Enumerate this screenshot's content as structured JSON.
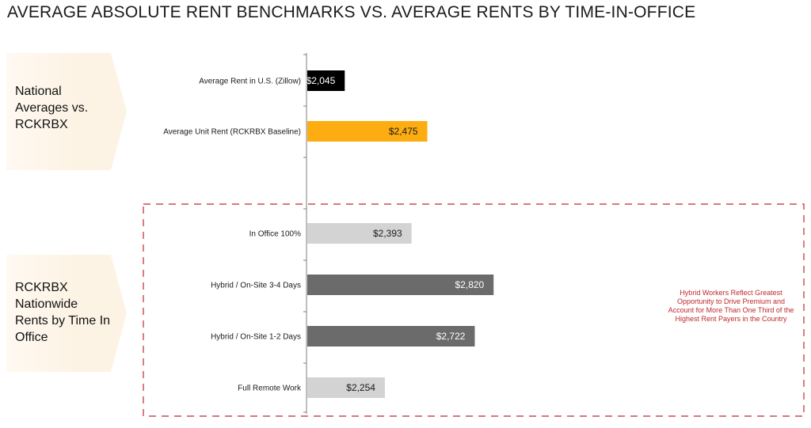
{
  "title": "AVERAGE ABSOLUTE RENT BENCHMARKS VS. AVERAGE RENTS BY TIME-IN-OFFICE",
  "panels": {
    "top": "National Averages vs. RCKRBX",
    "bottom": "RCKRBX Nationwide Rents by Time In Office"
  },
  "annotation": "Hybrid Workers Reflect Greatest Opportunity to Drive Premium and Account for More Than One Third of the Highest Rent Payers in the Country",
  "colors": {
    "black": "#000000",
    "orange": "#fdac12",
    "light_gray": "#d3d3d3",
    "dark_gray": "#6b6b6b",
    "dashed_box": "#c0282d",
    "panel_fill": "#fdf3e4"
  },
  "chart_data": {
    "type": "bar",
    "orientation": "horizontal",
    "categories": [
      "Average Rent in U.S. (Zillow)",
      "Average Unit Rent (RCKRBX Baseline)",
      "In Office 100%",
      "Hybrid / On-Site 3-4 Days",
      "Hybrid / On-Site 1-2 Days",
      "Full Remote Work"
    ],
    "values": [
      2045,
      2475,
      2393,
      2820,
      2722,
      2254
    ],
    "value_labels": [
      "$2,045",
      "$2,475",
      "$2,393",
      "$2,820",
      "$2,722",
      "$2,254"
    ],
    "bar_colors": [
      "#000000",
      "#fdac12",
      "#d3d3d3",
      "#6b6b6b",
      "#6b6b6b",
      "#d3d3d3"
    ],
    "label_colors": [
      "#ffffff",
      "#1a1a1a",
      "#1a1a1a",
      "#ffffff",
      "#ffffff",
      "#1a1a1a"
    ],
    "xlim": [
      1850,
      2940
    ],
    "grid": false,
    "legend": "none"
  }
}
